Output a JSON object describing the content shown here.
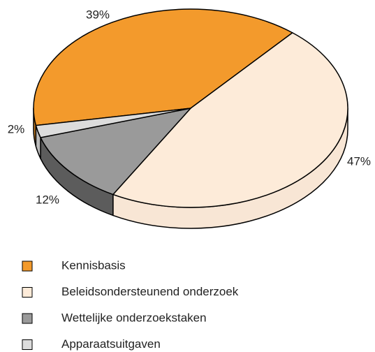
{
  "chart_data": {
    "type": "pie",
    "categories": [
      "Kennisbasis",
      "Beleidsondersteunend onderzoek",
      "Wettelijke onderzoekstaken",
      "Apparaatsuitgaven"
    ],
    "values": [
      39,
      47,
      12,
      2
    ],
    "value_labels": [
      "39%",
      "47%",
      "12%",
      "2%"
    ],
    "colors": [
      "#f39a2c",
      "#fdebd9",
      "#9a9a9a",
      "#dcdcdc"
    ],
    "legend": "bottom"
  }
}
